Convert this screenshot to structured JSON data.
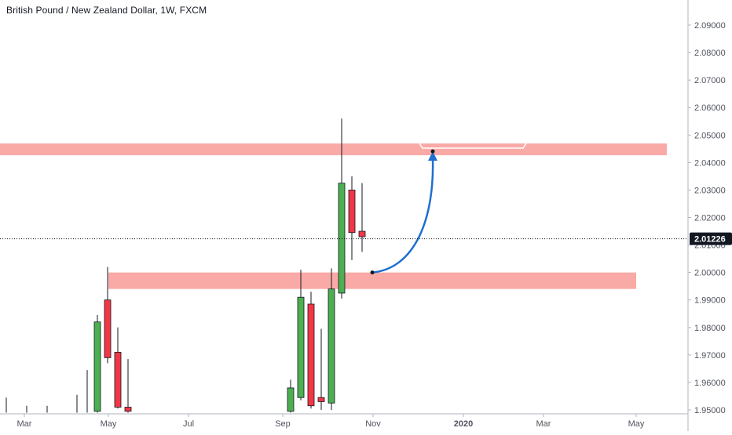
{
  "header": {
    "title": "British Pound / New Zealand Dollar, 1W, FXCM"
  },
  "chart_data": {
    "type": "candlestick",
    "symbol": "British Pound / New Zealand Dollar",
    "interval": "1W",
    "source": "FXCM",
    "ylim": [
      1.9495,
      2.0995
    ],
    "y_ticks": [
      "2.09000",
      "2.08000",
      "2.07000",
      "2.06000",
      "2.05000",
      "2.04000",
      "2.03000",
      "2.02000",
      "2.01000",
      "2.00000",
      "1.99000",
      "1.98000",
      "1.97000",
      "1.96000",
      "1.95000"
    ],
    "x_ticks": [
      "Mar",
      "May",
      "Jul",
      "Sep",
      "Nov",
      "2020",
      "Mar",
      "May"
    ],
    "current_price": "2.01226",
    "candles": [
      {
        "week": "Feb W3",
        "open": 1.9495,
        "high": 1.9545,
        "low": 1.949,
        "close": 1.9495
      },
      {
        "week": "Mar W1",
        "open": 1.9495,
        "high": 1.9515,
        "low": 1.949,
        "close": 1.9495
      },
      {
        "week": "Mar W3",
        "open": 1.9495,
        "high": 1.9515,
        "low": 1.949,
        "close": 1.9495
      },
      {
        "week": "Apr W2",
        "open": 1.9495,
        "high": 1.9555,
        "low": 1.949,
        "close": 1.9495
      },
      {
        "week": "Apr W3",
        "open": 1.9495,
        "high": 1.9645,
        "low": 1.949,
        "close": 1.9495
      },
      {
        "week": "Apr W4",
        "open": 1.9495,
        "high": 1.9845,
        "low": 1.949,
        "close": 1.982
      },
      {
        "week": "May W1",
        "open": 1.99,
        "high": 2.002,
        "low": 1.967,
        "close": 1.969
      },
      {
        "week": "May W2",
        "open": 1.971,
        "high": 1.98,
        "low": 1.9505,
        "close": 1.951
      },
      {
        "week": "May W3",
        "open": 1.951,
        "high": 1.9685,
        "low": 1.949,
        "close": 1.9495
      },
      {
        "week": "Sep W1",
        "open": 1.9495,
        "high": 1.961,
        "low": 1.949,
        "close": 1.958
      },
      {
        "week": "Sep W2",
        "open": 1.9545,
        "high": 2.001,
        "low": 1.9535,
        "close": 1.991
      },
      {
        "week": "Sep W3",
        "open": 1.9885,
        "high": 1.993,
        "low": 1.9505,
        "close": 1.9515
      },
      {
        "week": "Sep W4",
        "open": 1.9545,
        "high": 1.9795,
        "low": 1.95,
        "close": 1.953
      },
      {
        "week": "Oct W1",
        "open": 1.9525,
        "high": 2.0015,
        "low": 1.95,
        "close": 1.994
      },
      {
        "week": "Oct W2",
        "open": 1.9925,
        "high": 2.056,
        "low": 1.9905,
        "close": 2.0325
      },
      {
        "week": "Oct W3",
        "open": 2.03,
        "high": 2.035,
        "low": 2.0045,
        "close": 2.0145
      },
      {
        "week": "Oct W4",
        "open": 2.015,
        "high": 2.0325,
        "low": 2.0075,
        "close": 2.013
      }
    ],
    "zones": [
      {
        "type": "resistance",
        "from": 2.0435,
        "to": 2.0455
      },
      {
        "type": "support",
        "from": 1.994,
        "to": 2.0
      }
    ],
    "projection": {
      "from_price": 2.0,
      "to_price": 2.0435,
      "label": ""
    },
    "colors": {
      "up": "#4caf50",
      "down": "#f23645",
      "zone": "#f9aaa6",
      "arrow": "#1e6fcf",
      "axis_text": "#50535e",
      "price_label_bg": "#131722"
    }
  }
}
